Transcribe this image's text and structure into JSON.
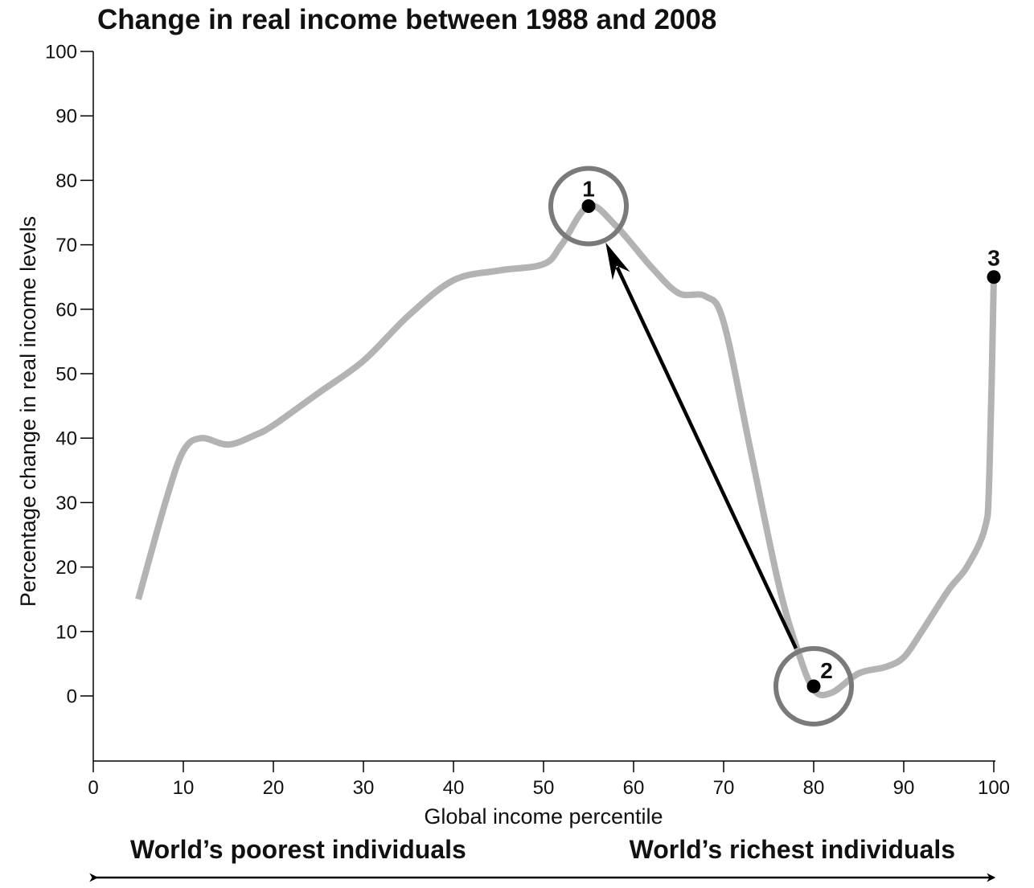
{
  "chart_data": {
    "type": "line",
    "title": "Change in real income between 1988 and 2008",
    "xlabel": "Global income percentile",
    "ylabel": "Percentage change in real income levels",
    "xlim": [
      0,
      100
    ],
    "ylim": [
      -10,
      100
    ],
    "xticks": [
      0,
      10,
      20,
      30,
      40,
      50,
      60,
      70,
      80,
      90,
      100
    ],
    "yticks": [
      0,
      10,
      20,
      30,
      40,
      50,
      60,
      70,
      80,
      90,
      100
    ],
    "grid": false,
    "series": [
      {
        "color": "#b3b3b3",
        "x": [
          5,
          8,
          10,
          12,
          15,
          18,
          20,
          25,
          30,
          35,
          40,
          45,
          50,
          52,
          55,
          58,
          62,
          65,
          68,
          70,
          73,
          76,
          78,
          80,
          82,
          85,
          88,
          90,
          92,
          95,
          97,
          99,
          99.5,
          100
        ],
        "y": [
          15,
          30,
          38,
          40,
          39,
          40.5,
          42,
          47,
          52,
          59,
          64.5,
          66,
          67,
          70,
          76,
          73,
          66.5,
          62.5,
          62,
          58,
          38,
          18,
          8,
          1,
          0.5,
          3.5,
          4.5,
          6,
          10,
          16.5,
          20,
          26,
          34,
          65
        ]
      }
    ],
    "points": [
      {
        "label": "1",
        "x": 55,
        "y": 76,
        "circled": true
      },
      {
        "label": "2",
        "x": 80,
        "y": 1.5,
        "circled": true
      },
      {
        "label": "3",
        "x": 100,
        "y": 65,
        "circled": false
      }
    ],
    "arrow": {
      "from_point": "2",
      "to_point": "1"
    },
    "bottom_labels": {
      "left": "World’s poorest individuals",
      "right": "World’s richest individuals"
    },
    "colors": {
      "line": "#b3b3b3",
      "circle": "#7a7a7a",
      "ink": "#000000"
    }
  }
}
